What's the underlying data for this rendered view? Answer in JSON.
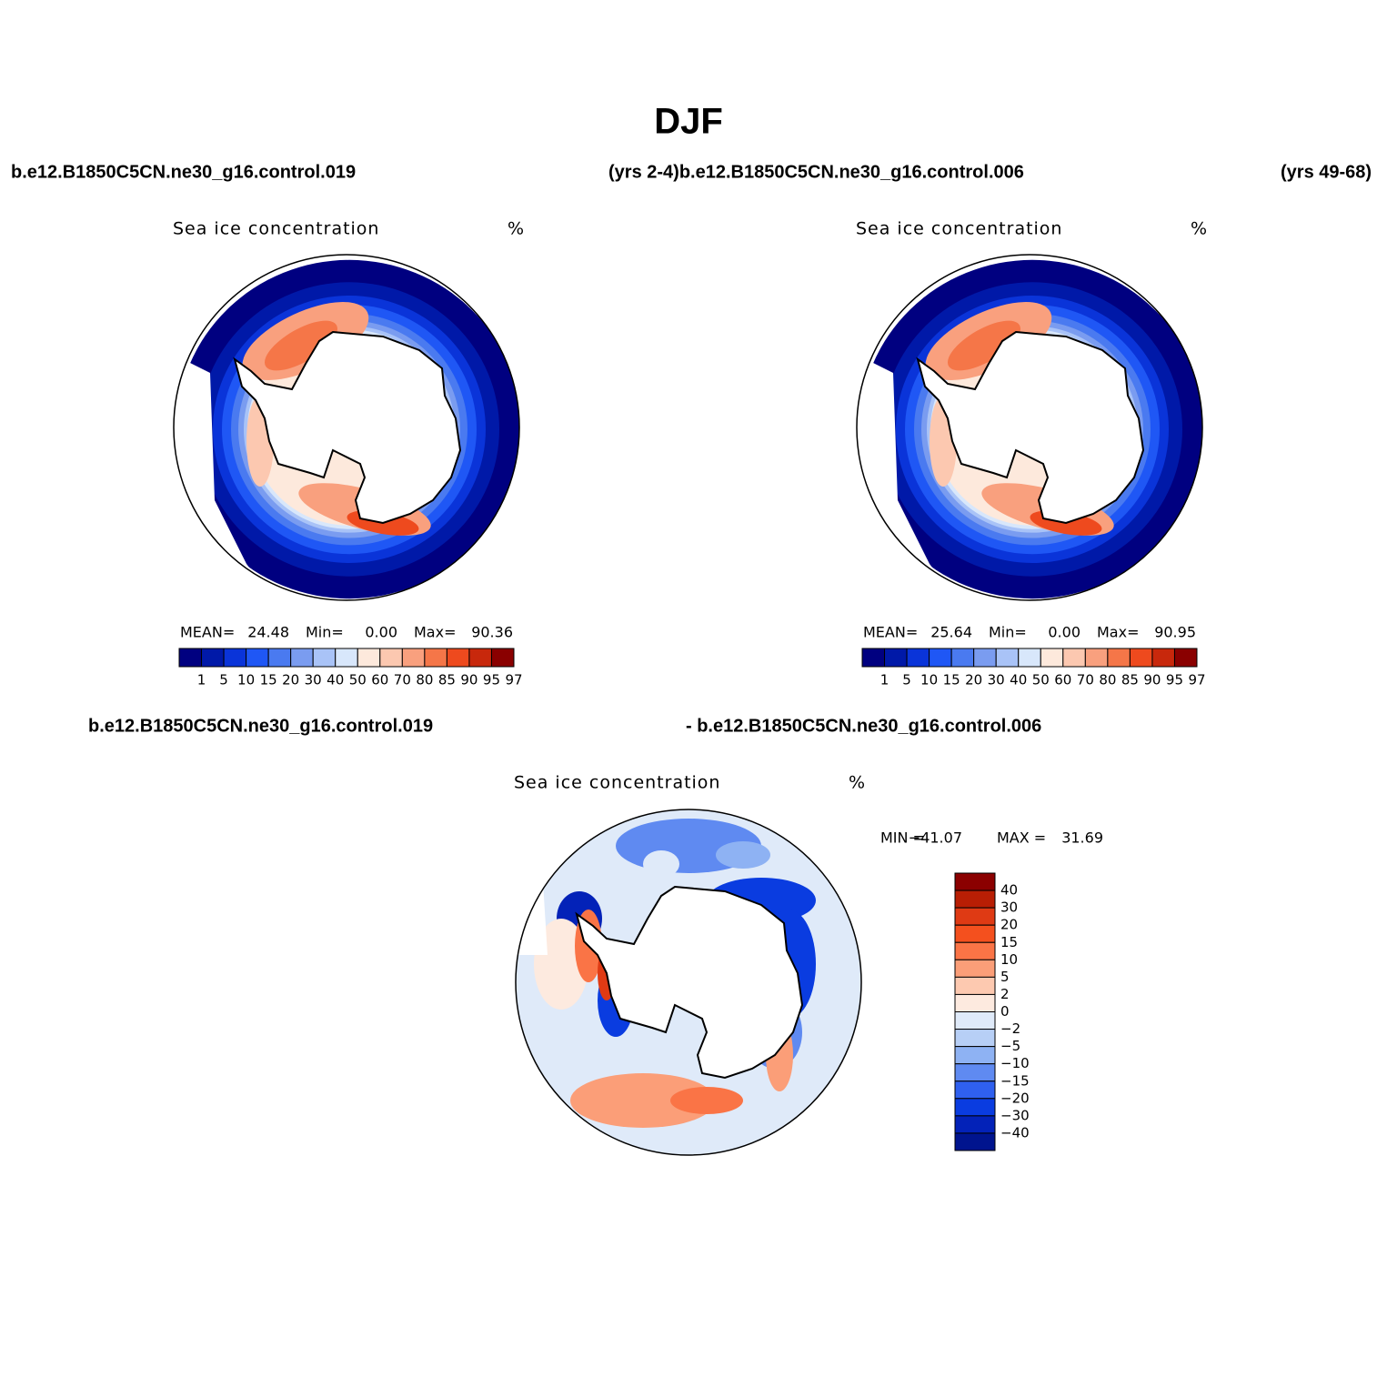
{
  "title": "DJF",
  "header_labels": [
    "b.e12.B1850C5CN.ne30_g16.control.019",
    "(yrs 2-4)b.e12.B1850C5CN.ne30_g16.control.006",
    "(yrs 49-68)"
  ],
  "subheader_labels": [
    "b.e12.B1850C5CN.ne30_g16.control.019",
    "- b.e12.B1850C5CN.ne30_g16.control.006"
  ],
  "panels": [
    {
      "label": "Sea ice concentration",
      "units": "%",
      "stats": [
        {
          "label": "MEAN=",
          "value": "24.48"
        },
        {
          "label": "Min=",
          "value": "0.00"
        },
        {
          "label": "Max=",
          "value": "90.36"
        }
      ]
    },
    {
      "label": "Sea ice concentration",
      "units": "%",
      "stats": [
        {
          "label": "MEAN=",
          "value": "25.64"
        },
        {
          "label": "Min=",
          "value": "0.00"
        },
        {
          "label": "Max=",
          "value": "90.95"
        }
      ]
    }
  ],
  "colorbar": {
    "levels": [
      "1",
      "5",
      "10",
      "15",
      "20",
      "30",
      "40",
      "50",
      "60",
      "70",
      "80",
      "85",
      "90",
      "95",
      "97"
    ],
    "colors": [
      "#000080",
      "#0019a8",
      "#0a34d9",
      "#1f57f5",
      "#4a7af0",
      "#7a9cf0",
      "#a9c3f7",
      "#d8e7fb",
      "#fde9dc",
      "#fcc8b0",
      "#f9a07e",
      "#f57648",
      "#ee4a1e",
      "#c8280c",
      "#8a0000"
    ]
  },
  "difference": {
    "label": "Sea ice concentration",
    "units": "%",
    "stats": [
      {
        "label": "MIN =",
        "value": "−41.07"
      },
      {
        "label": "MAX =",
        "value": "31.69"
      }
    ],
    "colorbar": {
      "levels": [
        "40",
        "30",
        "20",
        "15",
        "10",
        "5",
        "2",
        "0",
        "−2",
        "−5",
        "−10",
        "−15",
        "−20",
        "−30",
        "−40"
      ],
      "colors": [
        "#8b0000",
        "#b81e04",
        "#df3a14",
        "#f4501e",
        "#fa7446",
        "#fb9e78",
        "#fdc9b0",
        "#fdeadf",
        "#dfeaf9",
        "#b7cff6",
        "#8eb2f3",
        "#5f8af1",
        "#2f60ef",
        "#0a3ce0",
        "#0322b8",
        "#00148e"
      ]
    }
  }
}
